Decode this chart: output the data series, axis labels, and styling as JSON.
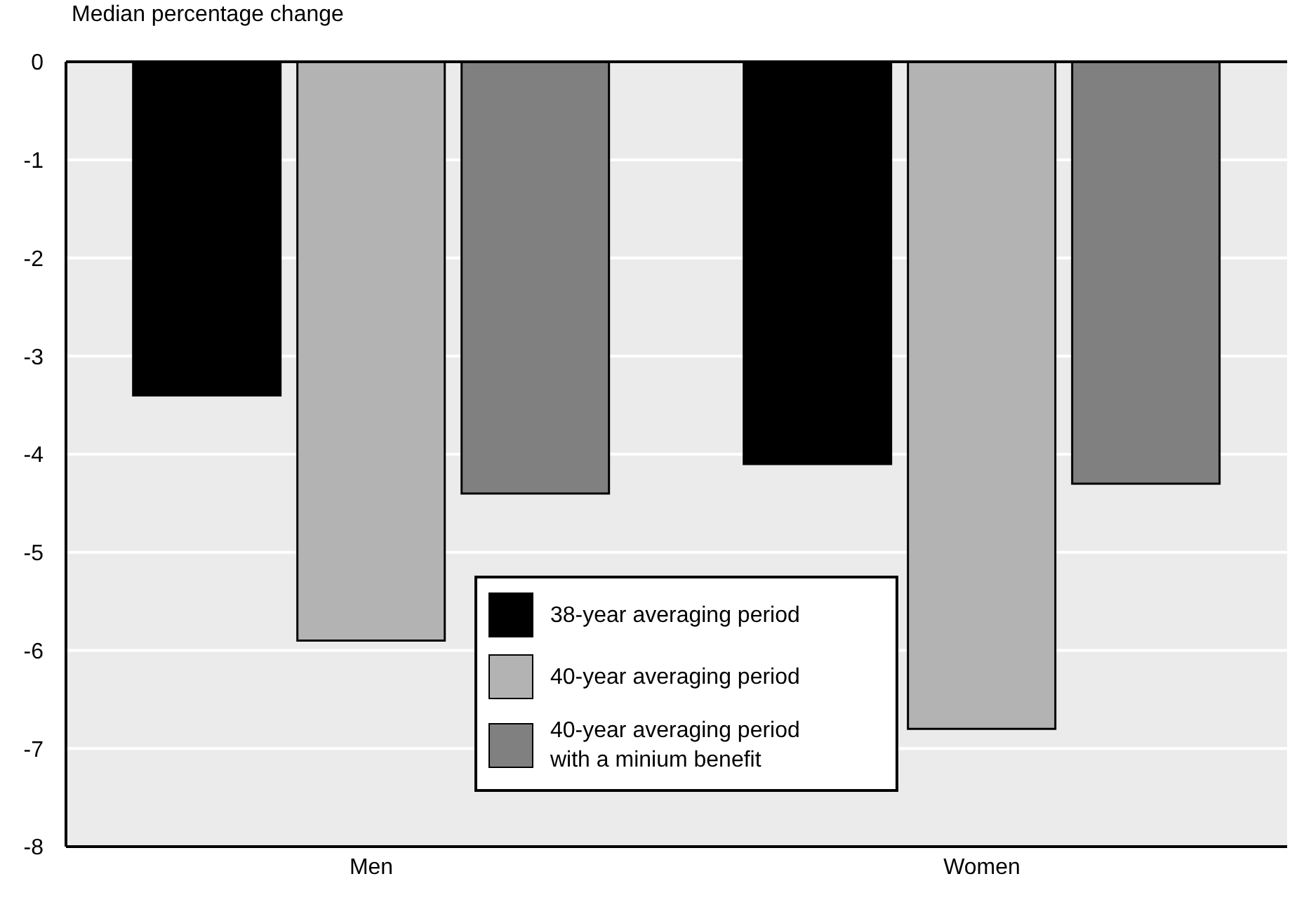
{
  "chart_data": {
    "type": "bar",
    "ylabel": "Median percentage change",
    "categories": [
      "Men",
      "Women"
    ],
    "series": [
      {
        "name": "38-year averaging period",
        "color": "#000000",
        "values": [
          -3.4,
          -4.1
        ]
      },
      {
        "name": "40-year averaging period",
        "color": "#b3b3b3",
        "values": [
          -5.9,
          -6.8
        ]
      },
      {
        "name": "40-year averaging period with a minium benefit",
        "color": "#808080",
        "values": [
          -4.4,
          -4.3
        ]
      }
    ],
    "ylim": [
      -8,
      0
    ],
    "yticks": [
      0,
      -1,
      -2,
      -3,
      -4,
      -5,
      -6,
      -7,
      -8
    ],
    "grid": "y",
    "legend": "bottom"
  }
}
